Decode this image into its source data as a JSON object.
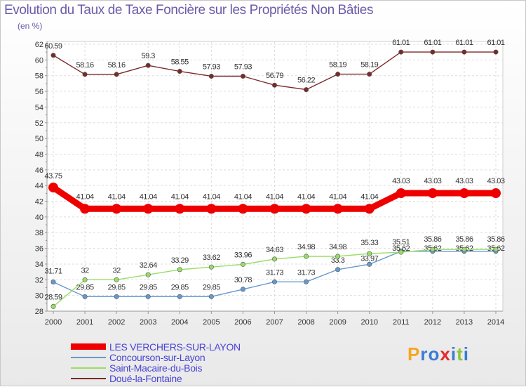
{
  "chart_data": {
    "type": "line",
    "title": "Evolution du Taux de Taxe Foncière sur les Propriétés Non Bâties",
    "unit_label": "(en %)",
    "xlabel": "",
    "ylabel": "",
    "ylim": [
      28,
      62
    ],
    "yticks": [
      28,
      30,
      32,
      34,
      36,
      38,
      40,
      42,
      44,
      46,
      48,
      50,
      52,
      54,
      56,
      58,
      60,
      62
    ],
    "categories": [
      "2000",
      "2001",
      "2002",
      "2003",
      "2004",
      "2005",
      "2006",
      "2007",
      "2008",
      "2009",
      "2010",
      "2011",
      "2012",
      "2013",
      "2014"
    ],
    "grid": true,
    "legend_position": "bottom-left",
    "series": [
      {
        "name": "LES VERCHERS-SUR-LAYON",
        "color": "#ee0000",
        "values": [
          43.75,
          41.04,
          41.04,
          41.04,
          41.04,
          41.04,
          41.04,
          41.04,
          41.04,
          41.04,
          41.04,
          43.03,
          43.03,
          43.03,
          43.03
        ],
        "labels": [
          "43.75",
          "41.04",
          "41.04",
          "41.04",
          "41.04",
          "41.04",
          "41.04",
          "41.04",
          "41.04",
          "41.04",
          "41.04",
          "43.03",
          "43.03",
          "43.03",
          "43.03"
        ]
      },
      {
        "name": "Concourson-sur-Layon",
        "color": "#6699cc",
        "values": [
          31.71,
          29.85,
          29.85,
          29.85,
          29.85,
          29.85,
          30.78,
          31.73,
          31.73,
          33.3,
          33.97,
          35.62,
          35.62,
          35.62,
          35.62
        ],
        "labels": [
          "31.71",
          "29.85",
          "29.85",
          "29.85",
          "29.85",
          "29.85",
          "30.78",
          "31.73",
          "31.73",
          "33.3",
          "33.97",
          "35.62",
          "35.62",
          "35.62",
          "35.62"
        ]
      },
      {
        "name": "Saint-Macaire-du-Bois",
        "color": "#99dd66",
        "values": [
          28.59,
          32,
          32,
          32.64,
          33.29,
          33.62,
          33.96,
          34.63,
          34.98,
          34.98,
          35.33,
          35.51,
          35.86,
          35.86,
          35.86
        ],
        "labels": [
          "28.59",
          "32",
          "32",
          "32.64",
          "33.29",
          "33.62",
          "33.96",
          "34.63",
          "34.98",
          "34.98",
          "35.33",
          "35.51",
          "35.86",
          "35.86",
          "35.86"
        ]
      },
      {
        "name": "Doué-la-Fontaine",
        "color": "#7a2a2a",
        "values": [
          60.59,
          58.16,
          58.16,
          59.3,
          58.55,
          57.93,
          57.93,
          56.79,
          56.22,
          58.19,
          58.19,
          61.01,
          61.01,
          61.01,
          61.01
        ],
        "labels": [
          "60.59",
          "58.16",
          "58.16",
          "59.3",
          "58.55",
          "57.93",
          "57.93",
          "56.79",
          "56.22",
          "58.19",
          "58.19",
          "61.01",
          "61.01",
          "61.01",
          "61.01"
        ]
      }
    ]
  },
  "logo": {
    "letters": [
      "P",
      "r",
      "o",
      "x",
      "i",
      "t",
      "i"
    ],
    "colors": [
      "#f5a623",
      "#3a7bd5",
      "#3a7bd5",
      "#e8282b",
      "#3a7bd5",
      "#8cc63f",
      "#3a7bd5"
    ]
  }
}
